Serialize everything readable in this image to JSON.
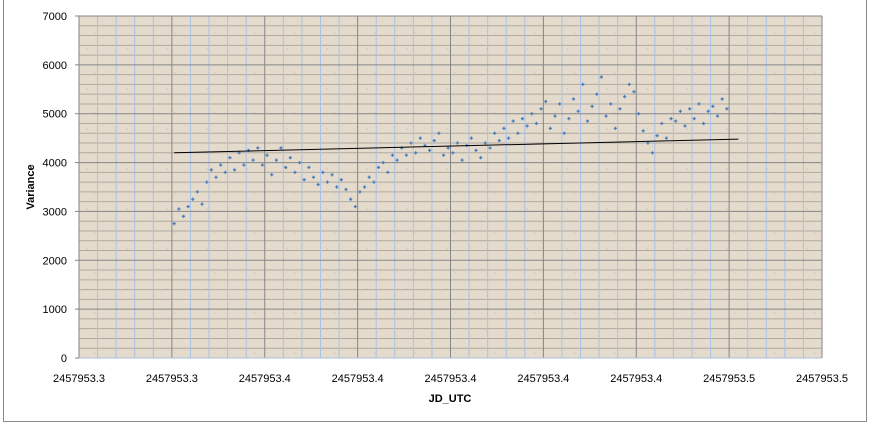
{
  "chart_data": {
    "type": "scatter",
    "title": "",
    "xlabel": "JD_UTC",
    "ylabel": "Variance",
    "xlim": [
      2457953.31,
      2457953.47
    ],
    "ylim": [
      0,
      7000
    ],
    "x_tick_labels": [
      "2457953.3",
      "2457953.3",
      "2457953.4",
      "2457953.4",
      "2457953.4",
      "2457953.4",
      "2457953.4",
      "2457953.5",
      "2457953.5"
    ],
    "y_tick_labels": [
      "0",
      "1000",
      "2000",
      "3000",
      "4000",
      "5000",
      "6000",
      "7000"
    ],
    "grid": true,
    "legend": "none",
    "colors": {
      "marker": "#4a7ebb",
      "trendline": "#000000",
      "plot_bg": "#e4dbcd",
      "major_grid": "#868686",
      "minor_grid_h": "#b0aaa0",
      "minor_grid_v": "#a8c2ea"
    },
    "series": [
      {
        "name": "Variance",
        "x_start": 2457953.3305,
        "x_step": 0.001,
        "y": [
          2750,
          3050,
          2900,
          3100,
          3250,
          3400,
          3150,
          3600,
          3850,
          3700,
          3950,
          3800,
          4100,
          3850,
          4200,
          3950,
          4250,
          4050,
          4300,
          3950,
          4150,
          3750,
          4050,
          4300,
          3900,
          4100,
          3800,
          4000,
          3650,
          3900,
          3700,
          3550,
          3800,
          3600,
          3750,
          3500,
          3650,
          3450,
          3250,
          3100,
          3400,
          3500,
          3700,
          3600,
          3900,
          4000,
          3800,
          4150,
          4050,
          4300,
          4150,
          4400,
          4200,
          4500,
          4350,
          4250,
          4450,
          4600,
          4150,
          4300,
          4200,
          4400,
          4050,
          4350,
          4500,
          4250,
          4100,
          4400,
          4300,
          4600,
          4450,
          4700,
          4500,
          4850,
          4600,
          4900,
          4750,
          5000,
          4800,
          5100,
          5250,
          4700,
          4950,
          5200,
          4600,
          4900,
          5300,
          5050,
          5600,
          4850,
          5150,
          5400,
          5750,
          4950,
          5200,
          4700,
          5100,
          5350,
          5600,
          5450,
          5000,
          4650,
          4400,
          4200,
          4550,
          4800,
          4500,
          4900,
          4850,
          5050,
          4750,
          5100,
          4900,
          5200,
          4800,
          5050,
          5150,
          4950,
          5300,
          5100
        ]
      }
    ],
    "trendline": {
      "type": "linear",
      "points": [
        [
          2457953.3305,
          4200
        ],
        [
          2457953.452,
          4480
        ]
      ]
    }
  }
}
